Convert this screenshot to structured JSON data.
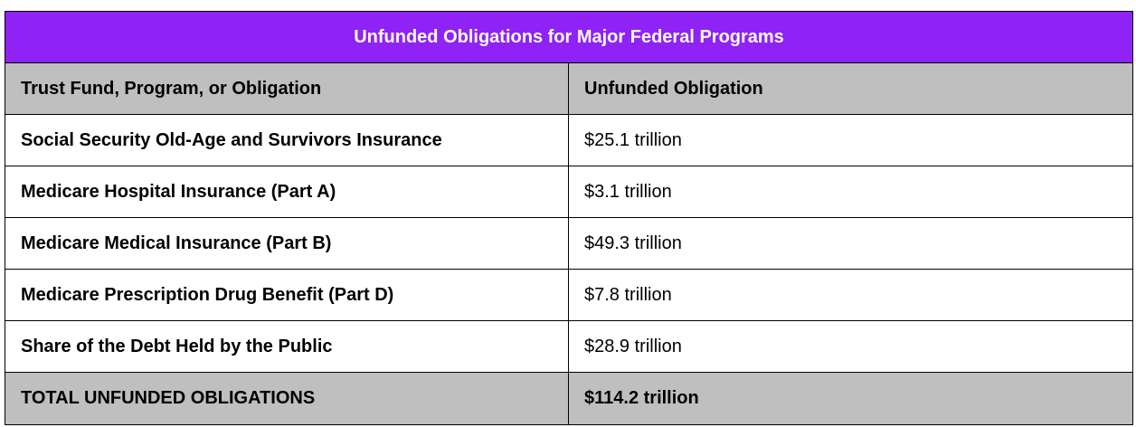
{
  "chart_data": {
    "type": "table",
    "title": "Unfunded Obligations for Major Federal Programs",
    "columns": [
      "Trust Fund, Program, or Obligation",
      "Unfunded Obligation"
    ],
    "rows": [
      {
        "label": "Social Security Old-Age and Survivors Insurance",
        "value": "$25.1 trillion"
      },
      {
        "label": "Medicare Hospital Insurance (Part A)",
        "value": "$3.1 trillion"
      },
      {
        "label": "Medicare Medical Insurance (Part B)",
        "value": "$49.3 trillion"
      },
      {
        "label": "Medicare Prescription Drug Benefit (Part D)",
        "value": "$7.8 trillion"
      },
      {
        "label": "Share of the Debt Held by the Public",
        "value": "$28.9 trillion"
      }
    ],
    "total": {
      "label": "TOTAL UNFUNDED OBLIGATIONS",
      "value": "$114.2 trillion"
    }
  },
  "colors": {
    "title_background": "#8f22f5",
    "title_text": "#ffffff",
    "header_background": "#bfbfbf",
    "total_background": "#bfbfbf",
    "border": "#000000"
  }
}
